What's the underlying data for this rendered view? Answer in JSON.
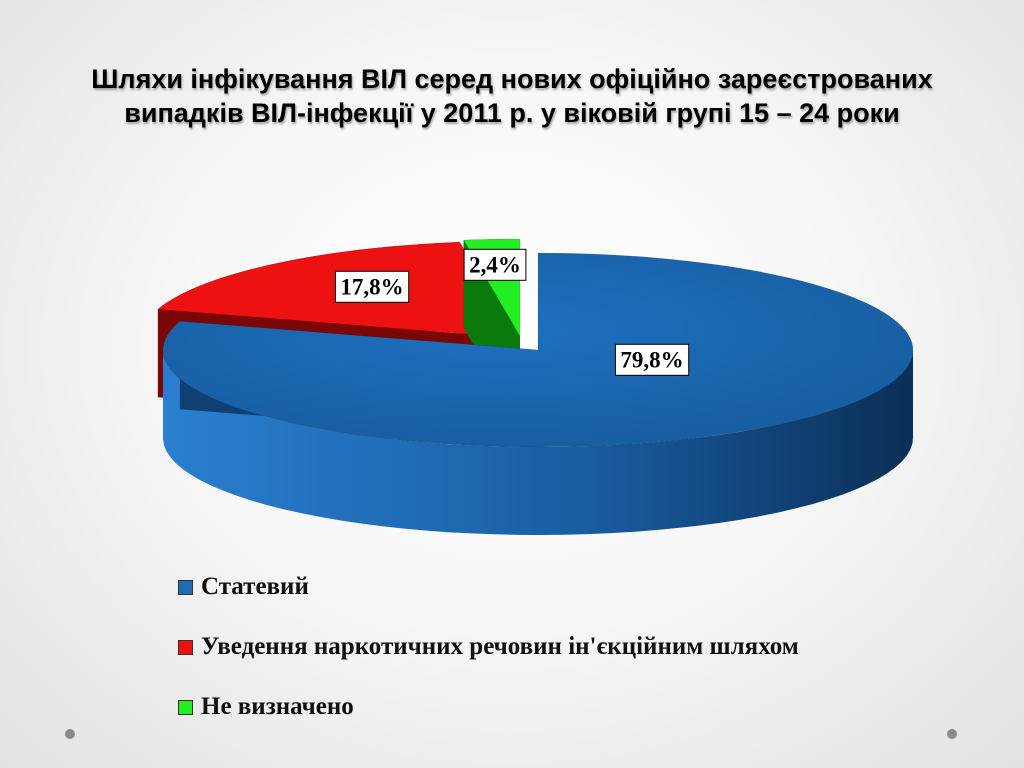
{
  "slide": {
    "title_line1": "Шляхи інфікування ВІЛ серед нових офіційно зареєстрованих",
    "title_line2": "випадків ВІЛ-інфекції у 2011 р. у віковій групі 15 – 24 роки"
  },
  "chart_data": {
    "type": "pie",
    "style": "3d-exploded",
    "title": "Шляхи інфікування ВІЛ серед нових офіційно зареєстрованих випадків ВІЛ-інфекції у 2011 р. у віковій групі 15 – 24 роки",
    "slices": [
      {
        "label": "Статевий",
        "value": 79.8,
        "data_label": "79,8%",
        "color": "#1f6bb5",
        "side_color": "#0f3f73"
      },
      {
        "label": "Уведення наркотичних речовин ін'єкційним шляхом",
        "value": 17.8,
        "data_label": "17,8%",
        "color": "#ee1111",
        "side_color": "#7a0606"
      },
      {
        "label": "Не визначено",
        "value": 2.4,
        "data_label": "2,4%",
        "color": "#22ee22",
        "side_color": "#0a7a0a"
      }
    ],
    "legend_position": "bottom"
  }
}
